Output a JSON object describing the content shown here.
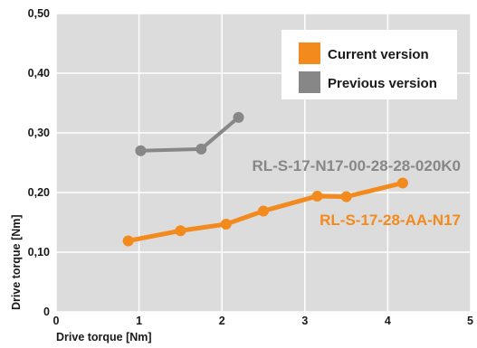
{
  "chart_data": {
    "type": "line",
    "xlabel": "Drive torque [Nm]",
    "ylabel": "Drive torque [Nm]",
    "xlim": [
      0,
      5
    ],
    "ylim": [
      0,
      0.5
    ],
    "x_ticks": [
      "0",
      "1",
      "2",
      "3",
      "4",
      "5"
    ],
    "y_ticks": [
      "0",
      "0,10",
      "0,20",
      "0,30",
      "0,40",
      "0,50"
    ],
    "grid": true,
    "legend_position": "top-right",
    "series": [
      {
        "name": "Current version",
        "label": "RL-S-17-28-AA-N17",
        "color": "#f28a1e",
        "x": [
          0.87,
          1.5,
          2.05,
          2.5,
          3.15,
          3.5,
          4.18
        ],
        "y": [
          0.119,
          0.136,
          0.147,
          0.169,
          0.194,
          0.193,
          0.216
        ]
      },
      {
        "name": "Previous version",
        "label": "RL-S-17-N17-00-28-28-020K0",
        "color": "#878787",
        "x": [
          1.02,
          1.75,
          2.2
        ],
        "y": [
          0.27,
          0.273,
          0.326
        ]
      }
    ]
  }
}
